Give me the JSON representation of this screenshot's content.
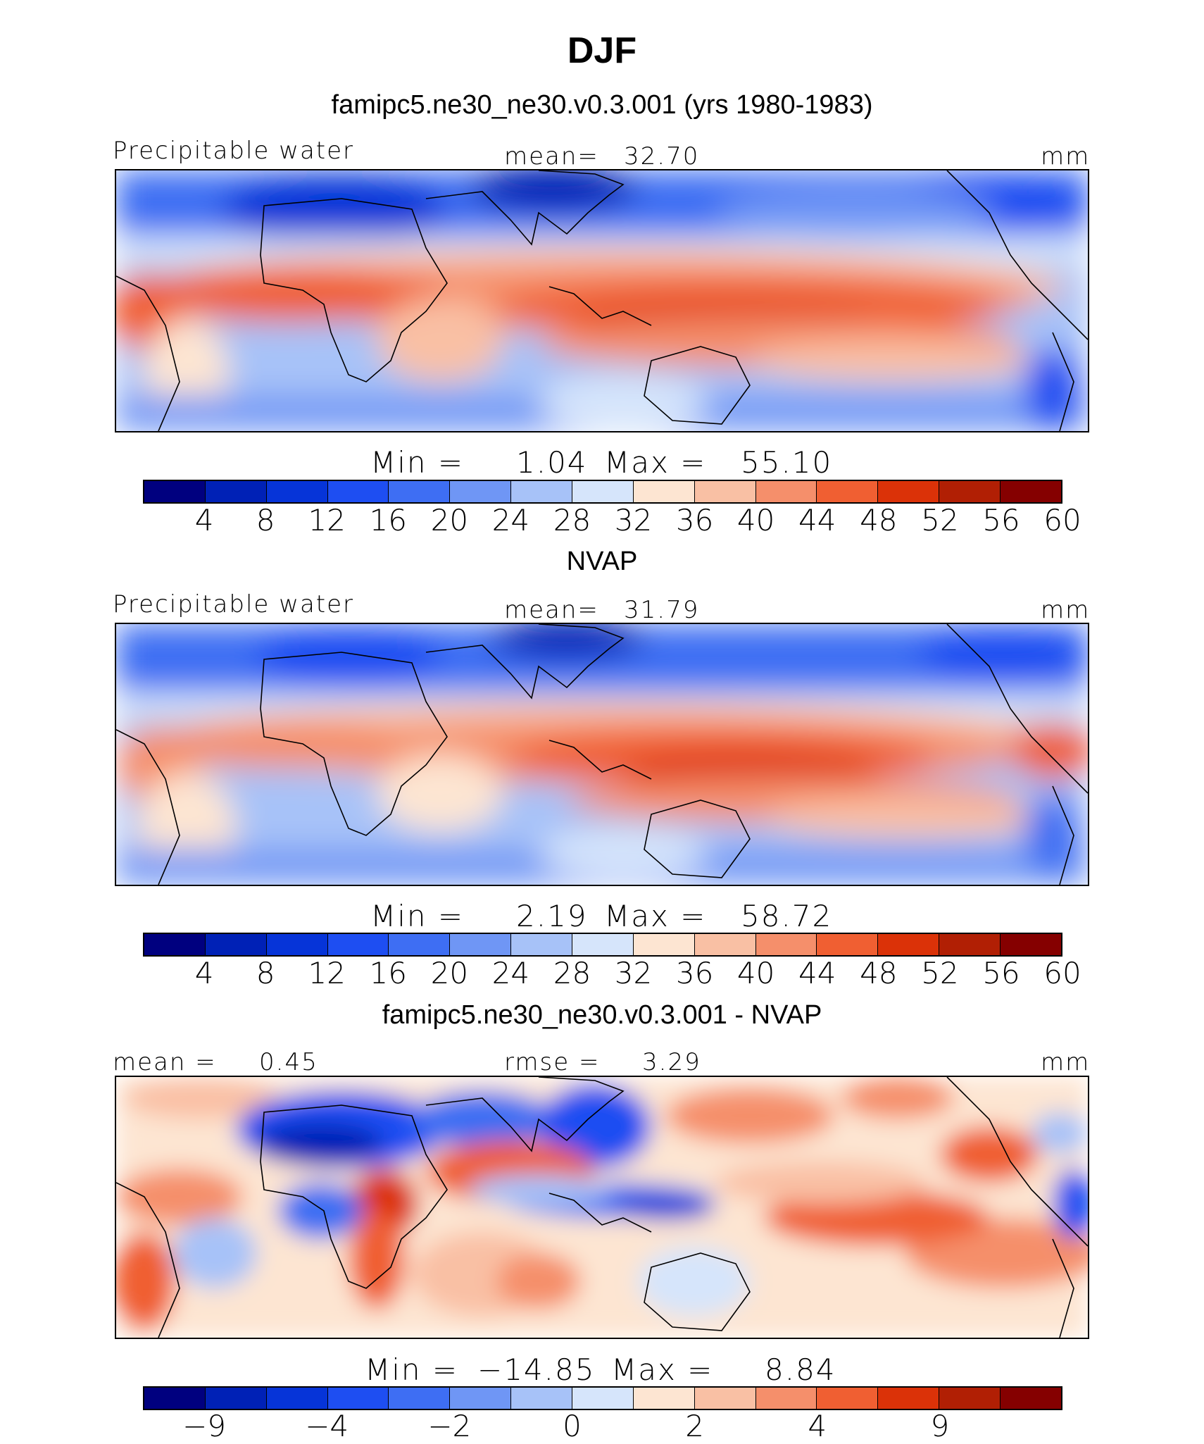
{
  "title": "DJF",
  "colorbar": {
    "colors": [
      "#00007f",
      "#0021b6",
      "#0634d8",
      "#1e4ef2",
      "#3e6ef3",
      "#6f96f5",
      "#a7c2f8",
      "#d6e5fb",
      "#fde5d2",
      "#f9c0a4",
      "#f58f6b",
      "#f05f32",
      "#db3208",
      "#b11f04",
      "#850000"
    ]
  },
  "chart_data": [
    {
      "type": "heatmap",
      "title": "famipc5.ne30_ne30.v0.3.001 (yrs 1980-1983)",
      "variable": "Precipitable water",
      "units": "mm",
      "mean_label": "mean=",
      "mean": "32.70",
      "min_label": "Min =",
      "min": "1.04",
      "max_label": "Max =",
      "max": "55.10",
      "levels": [
        "4",
        "8",
        "12",
        "16",
        "20",
        "24",
        "28",
        "32",
        "36",
        "40",
        "44",
        "48",
        "52",
        "56",
        "60"
      ]
    },
    {
      "type": "heatmap",
      "title": "NVAP",
      "variable": "Precipitable water",
      "units": "mm",
      "mean_label": "mean=",
      "mean": "31.79",
      "min_label": "Min =",
      "min": "2.19",
      "max_label": "Max =",
      "max": "58.72",
      "levels": [
        "4",
        "8",
        "12",
        "16",
        "20",
        "24",
        "28",
        "32",
        "36",
        "40",
        "44",
        "48",
        "52",
        "56",
        "60"
      ]
    },
    {
      "type": "heatmap",
      "title": "famipc5.ne30_ne30.v0.3.001 - NVAP",
      "units": "mm",
      "mean_label": "mean =",
      "mean": "0.45",
      "rmse_label": "rmse =",
      "rmse": "3.29",
      "min_label": "Min =",
      "min": "−14.85",
      "max_label": "Max =",
      "max": "8.84",
      "levels": [
        "−9",
        "−4",
        "−2",
        "0",
        "2",
        "4",
        "9"
      ]
    }
  ]
}
